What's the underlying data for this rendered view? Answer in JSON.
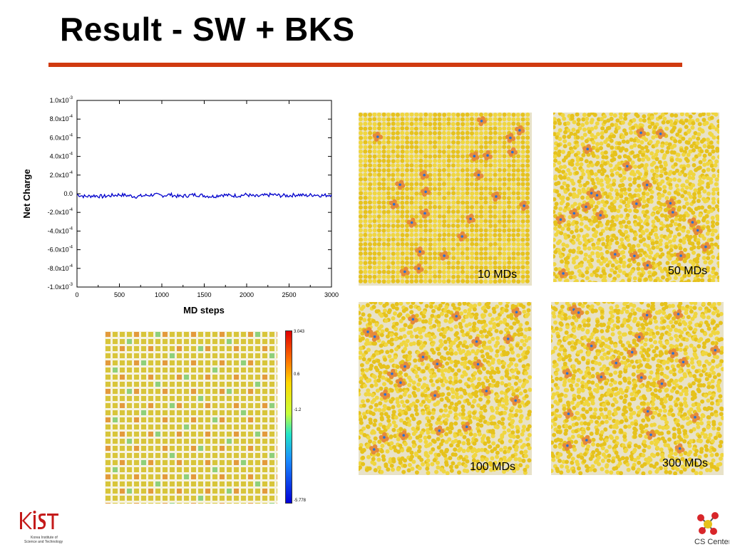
{
  "slide": {
    "title": "Result - SW + BKS",
    "accent_color": "#d03a10"
  },
  "chart_data": {
    "type": "line",
    "xlabel": "MD steps",
    "ylabel": "Net Charge",
    "xlim": [
      0,
      3000
    ],
    "ylim": [
      -0.001,
      0.001
    ],
    "x_ticks": [
      "0",
      "500",
      "1000",
      "1500",
      "2000",
      "2500",
      "3000"
    ],
    "y_ticks": [
      {
        "mant": "1.0x10",
        "exp": "-3"
      },
      {
        "mant": "8.0x10",
        "exp": "-4"
      },
      {
        "mant": "6.0x10",
        "exp": "-4"
      },
      {
        "mant": "4.0x10",
        "exp": "-4"
      },
      {
        "mant": "2.0x10",
        "exp": "-4"
      },
      {
        "mant": "0.0",
        "exp": ""
      },
      {
        "mant": "-2.0x10",
        "exp": "-4"
      },
      {
        "mant": "-4.0x10",
        "exp": "-4"
      },
      {
        "mant": "-6.0x10",
        "exp": "-4"
      },
      {
        "mant": "-8.0x10",
        "exp": "-4"
      },
      {
        "mant": "-1.0x10",
        "exp": "-3"
      }
    ],
    "y_tick_values": [
      0.001,
      0.0008,
      0.0006,
      0.0004,
      0.0002,
      0,
      -0.0002,
      -0.0004,
      -0.0006,
      -0.0008,
      -0.001
    ],
    "series": [
      {
        "color": "#0000cc",
        "x": [
          0,
          100,
          200,
          300,
          400,
          500,
          600,
          700,
          800,
          900,
          1000,
          1100,
          1200,
          1300,
          1400,
          1500,
          1600,
          1700,
          1800,
          1900,
          2000,
          2100,
          2200,
          2300,
          2400,
          2500,
          2600,
          2700,
          2800,
          2900,
          3000
        ],
        "y": [
          -1e-05,
          -3e-05,
          -2e-05,
          -3e-05,
          -2e-05,
          -1e-05,
          -2e-05,
          -3e-05,
          -2e-05,
          -1e-05,
          -2e-05,
          -1e-05,
          -3e-05,
          -2e-05,
          -1e-05,
          -2e-05,
          -3e-05,
          -1e-05,
          -2e-05,
          -2e-05,
          -1e-05,
          -3e-05,
          -2e-05,
          -1e-05,
          -2e-05,
          -2e-05,
          -1e-05,
          -2e-05,
          -1e-05,
          -2e-05,
          -1e-05
        ]
      }
    ]
  },
  "colorbar": {
    "max": "3.043",
    "t1": "0.6",
    "t2": "-1.2",
    "min": "-5.778"
  },
  "panels": [
    {
      "label": "10 MDs"
    },
    {
      "label": "50 MDs"
    },
    {
      "label": "100 MDs"
    },
    {
      "label": "300 MDs"
    }
  ],
  "logos": {
    "kist_main": "KIST",
    "kist_sub1": "Korea Institute of",
    "kist_sub2": "Science and Technology",
    "cs": "CS Center"
  }
}
